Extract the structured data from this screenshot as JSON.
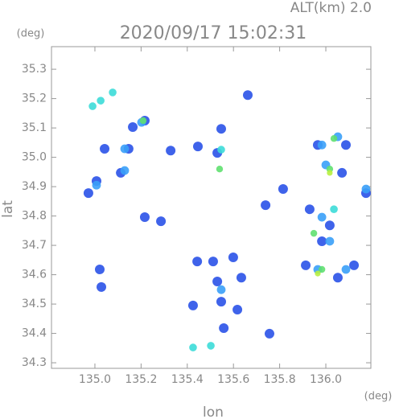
{
  "chart_data": {
    "type": "scatter",
    "title": "2020/09/17 15:02:31",
    "subtitle": "ALT(km) 2.0",
    "x_label": "lon",
    "y_label": "lat",
    "x_unit": "(deg)",
    "y_unit": "(deg)",
    "xlim": [
      134.812,
      136.195
    ],
    "ylim": [
      34.281,
      35.377
    ],
    "xticks": [
      {
        "value": 135,
        "label": "135.0"
      },
      135.2,
      135.4,
      135.6,
      135.8,
      {
        "value": 136,
        "label": "136.0"
      }
    ],
    "yticks": [
      34.3,
      34.4,
      {
        "value": 34.5,
        "label": "34.5"
      },
      34.6,
      34.7,
      34.8,
      34.9,
      {
        "value": 35,
        "label": "35.0"
      },
      35.1,
      35.2,
      35.3
    ],
    "grid": false,
    "series": [
      {
        "color": "#2a52e8",
        "x": [
          134.972,
          135.007,
          135.042,
          135.146,
          135.112,
          135.216,
          135.164,
          135.328,
          135.446,
          135.547,
          135.53,
          135.662,
          135.815,
          135.93,
          135.965,
          136.087,
          136.07,
          136.174,
          136.017,
          135.983,
          135.913,
          136.122,
          136.052,
          135.021,
          135.028,
          135.443,
          135.512,
          135.599,
          135.53,
          135.634,
          135.547,
          135.617,
          135.425,
          135.558,
          135.756,
          135.739,
          135.286,
          135.216
        ],
        "y": [
          34.878,
          34.919,
          35.029,
          35.029,
          34.947,
          35.125,
          35.103,
          35.023,
          35.037,
          35.097,
          35.015,
          35.212,
          34.892,
          34.823,
          35.042,
          35.042,
          34.947,
          34.878,
          34.768,
          34.714,
          34.632,
          34.632,
          34.59,
          34.618,
          34.558,
          34.645,
          34.645,
          34.659,
          34.577,
          34.59,
          34.508,
          34.481,
          34.495,
          34.418,
          34.399,
          34.837,
          34.782,
          34.796
        ]
      },
      {
        "color": "#3aa0f8",
        "x": [
          135.007,
          135.129,
          135.202,
          135.129,
          135.983,
          136.052,
          136.0,
          135.983,
          136.017,
          135.965,
          136.087,
          135.547,
          136.174
        ],
        "y": [
          34.905,
          35.029,
          35.119,
          34.955,
          35.042,
          35.07,
          34.974,
          34.796,
          34.714,
          34.618,
          34.618,
          34.549,
          34.892
        ]
      },
      {
        "color": "#3cdcd8",
        "x": [
          135.025,
          134.99,
          135.077,
          135.425,
          135.502,
          135.547,
          136.035
        ],
        "y": [
          35.193,
          35.174,
          35.221,
          34.352,
          34.358,
          35.026,
          34.823
        ]
      },
      {
        "color": "#60e070",
        "x": [
          136.035,
          135.209,
          135.54,
          136.017,
          135.983,
          135.948
        ],
        "y": [
          35.064,
          35.125,
          34.96,
          34.96,
          34.618,
          34.741
        ]
      },
      {
        "color": "#b8f040",
        "x": [
          136.017,
          135.965
        ],
        "y": [
          34.947,
          34.604
        ]
      }
    ]
  }
}
